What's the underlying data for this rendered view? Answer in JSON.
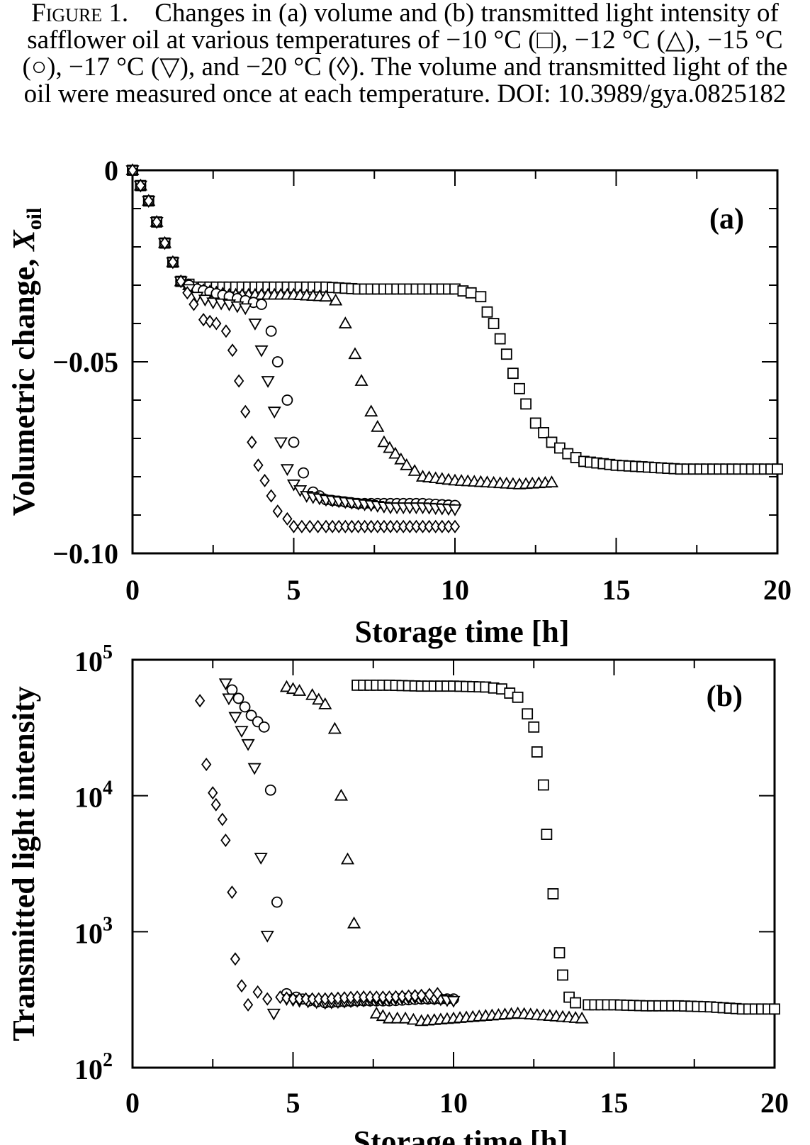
{
  "caption": {
    "figure_label": "Figure 1.",
    "text": "Changes in (a) volume and (b) transmitted light intensity of safflower oil at various temperatures of −10 °C (□), −12 °C (△), −15 °C (○), −17 °C (▽), and −20 °C (◊). The volume and transmitted light of the oil were measured once at each temperature.",
    "doi": "DOI: 10.3989/gya.0825182"
  },
  "chart_data": [
    {
      "type": "scatter",
      "panel_label": "(a)",
      "xlabel": "Storage time [h]",
      "ylabel": "Volumetric change, X",
      "ylabel_subscript": "oil",
      "xlim": [
        0,
        20
      ],
      "ylim": [
        -0.1,
        0
      ],
      "xticks": [
        0,
        5,
        10,
        15,
        20
      ],
      "xtick_labels": [
        "0",
        "5",
        "10",
        "15",
        "20"
      ],
      "yticks": [
        0,
        -0.05,
        -0.1
      ],
      "ytick_labels": [
        "0",
        "−0.05",
        "−0.10"
      ],
      "grid": false,
      "series": [
        {
          "name": "−10 °C",
          "marker": "square",
          "x": [
            0,
            0.5,
            1.0,
            1.5,
            2,
            3,
            4,
            5,
            6,
            7,
            8,
            9,
            10,
            10.5,
            10.8,
            11.0,
            11.2,
            11.4,
            11.6,
            11.8,
            12.0,
            12.2,
            12.5,
            13,
            13.5,
            14,
            15,
            16,
            17,
            18,
            19,
            20
          ],
          "y": [
            0,
            -0.008,
            -0.019,
            -0.029,
            -0.0305,
            -0.0305,
            -0.0305,
            -0.0305,
            -0.0305,
            -0.031,
            -0.031,
            -0.031,
            -0.031,
            -0.032,
            -0.033,
            -0.037,
            -0.04,
            -0.044,
            -0.048,
            -0.053,
            -0.057,
            -0.061,
            -0.066,
            -0.071,
            -0.074,
            -0.076,
            -0.077,
            -0.0775,
            -0.078,
            -0.078,
            -0.078,
            -0.078
          ]
        },
        {
          "name": "−12 °C",
          "marker": "triangle-up",
          "x": [
            0,
            0.5,
            1.0,
            1.5,
            2,
            3,
            4,
            5,
            6,
            6.3,
            6.6,
            6.9,
            7.1,
            7.4,
            7.8,
            8.5,
            9,
            10,
            11,
            12,
            13
          ],
          "y": [
            0,
            -0.008,
            -0.019,
            -0.029,
            -0.031,
            -0.0325,
            -0.0325,
            -0.0325,
            -0.033,
            -0.034,
            -0.04,
            -0.048,
            -0.055,
            -0.063,
            -0.071,
            -0.077,
            -0.08,
            -0.081,
            -0.0815,
            -0.082,
            -0.0815
          ]
        },
        {
          "name": "−15 °C",
          "marker": "circle",
          "x": [
            0,
            0.5,
            1.0,
            1.5,
            2,
            3,
            3.5,
            4.0,
            4.3,
            4.5,
            4.8,
            5.0,
            5.3,
            5.6,
            6,
            7,
            8,
            9,
            10
          ],
          "y": [
            0,
            -0.008,
            -0.019,
            -0.029,
            -0.031,
            -0.033,
            -0.034,
            -0.035,
            -0.042,
            -0.05,
            -0.06,
            -0.071,
            -0.079,
            -0.084,
            -0.086,
            -0.087,
            -0.087,
            -0.087,
            -0.0875
          ]
        },
        {
          "name": "−17 °C",
          "marker": "triangle-down",
          "x": [
            0,
            0.5,
            1.0,
            1.5,
            2,
            2.5,
            3,
            3.5,
            3.8,
            4.0,
            4.2,
            4.4,
            4.6,
            4.8,
            5.0,
            5.4,
            6,
            7,
            8,
            9,
            10
          ],
          "y": [
            0,
            -0.008,
            -0.019,
            -0.029,
            -0.033,
            -0.0345,
            -0.035,
            -0.036,
            -0.04,
            -0.047,
            -0.055,
            -0.063,
            -0.071,
            -0.078,
            -0.082,
            -0.085,
            -0.086,
            -0.087,
            -0.088,
            -0.088,
            -0.0885
          ]
        },
        {
          "name": "−20 °C",
          "marker": "diamond",
          "x": [
            0,
            0.5,
            1.0,
            1.5,
            1.9,
            2.2,
            2.6,
            2.9,
            3.1,
            3.3,
            3.5,
            3.7,
            3.9,
            4.1,
            4.3,
            4.5,
            4.8,
            5.0,
            5.5,
            6,
            7,
            8,
            9,
            10
          ],
          "y": [
            0,
            -0.008,
            -0.019,
            -0.029,
            -0.035,
            -0.039,
            -0.04,
            -0.042,
            -0.047,
            -0.055,
            -0.063,
            -0.071,
            -0.077,
            -0.081,
            -0.085,
            -0.089,
            -0.091,
            -0.093,
            -0.093,
            -0.093,
            -0.093,
            -0.093,
            -0.093,
            -0.093
          ]
        }
      ]
    },
    {
      "type": "scatter",
      "panel_label": "(b)",
      "xlabel": "Storage time [h]",
      "ylabel": "Transmitted light intensity",
      "xlim": [
        0,
        20
      ],
      "ylim": [
        100,
        100000
      ],
      "yscale": "log",
      "xticks": [
        0,
        5,
        10,
        15,
        20
      ],
      "xtick_labels": [
        "0",
        "5",
        "10",
        "15",
        "20"
      ],
      "yticks": [
        100,
        1000,
        10000,
        100000
      ],
      "ytick_labels": [
        {
          "base": "10",
          "exp": "2"
        },
        {
          "base": "10",
          "exp": "3"
        },
        {
          "base": "10",
          "exp": "4"
        },
        {
          "base": "10",
          "exp": "5"
        }
      ],
      "grid": false,
      "series": [
        {
          "name": "−10 °C",
          "marker": "square",
          "x": [
            7,
            8,
            9,
            10,
            11,
            11.5,
            12.0,
            12.3,
            12.5,
            12.6,
            12.8,
            12.9,
            13.1,
            13.3,
            13.4,
            13.6,
            13.8,
            14.2,
            15,
            16,
            17,
            18,
            19,
            20
          ],
          "y": [
            65000,
            65000,
            64000,
            64000,
            63000,
            61000,
            53000,
            40000,
            32000,
            21000,
            12000,
            5200,
            1900,
            700,
            480,
            330,
            300,
            290,
            290,
            285,
            285,
            280,
            270,
            270
          ]
        },
        {
          "name": "−12 °C",
          "marker": "triangle-up",
          "x": [
            4.8,
            5.2,
            5.6,
            6.0,
            6.3,
            6.5,
            6.7,
            6.9,
            7.2,
            7.6,
            8,
            8.5,
            9,
            10,
            11,
            12,
            13,
            14
          ],
          "y": [
            63000,
            59000,
            55000,
            47000,
            31000,
            10000,
            3400,
            1150,
            330,
            250,
            230,
            230,
            220,
            230,
            240,
            250,
            240,
            230
          ]
        },
        {
          "name": "−15 °C",
          "marker": "circle",
          "x": [
            3.1,
            3.3,
            3.5,
            3.7,
            3.9,
            4.1,
            4.3,
            4.5,
            4.8,
            5.1,
            5.5,
            6,
            7,
            8,
            9,
            10
          ],
          "y": [
            60000,
            52000,
            45000,
            39000,
            35000,
            32000,
            11000,
            1650,
            350,
            330,
            310,
            300,
            310,
            310,
            320,
            320
          ]
        },
        {
          "name": "−17 °C",
          "marker": "triangle-down",
          "x": [
            2.9,
            3.0,
            3.2,
            3.4,
            3.6,
            3.8,
            4.0,
            4.4,
            4.8,
            5.2,
            6,
            7,
            8,
            9,
            10
          ],
          "y": [
            67000,
            52000,
            38000,
            30000,
            24000,
            16000,
            3500,
            250,
            320,
            310,
            300,
            310,
            320,
            330,
            310
          ]
        },
        {
          "name": "−20 °C",
          "marker": "diamond",
          "x": [
            2.1,
            2.3,
            2.5,
            2.6,
            2.8,
            2.9,
            3.1,
            3.2,
            3.4,
            3.6,
            3.9,
            4.2,
            4.6,
            5,
            6,
            7,
            8,
            9,
            9.5
          ],
          "y": [
            50000,
            17000,
            10500,
            8600,
            6700,
            4700,
            1950,
            630,
            400,
            290,
            360,
            320,
            330,
            320,
            320,
            330,
            330,
            340,
            350
          ]
        }
      ]
    }
  ]
}
